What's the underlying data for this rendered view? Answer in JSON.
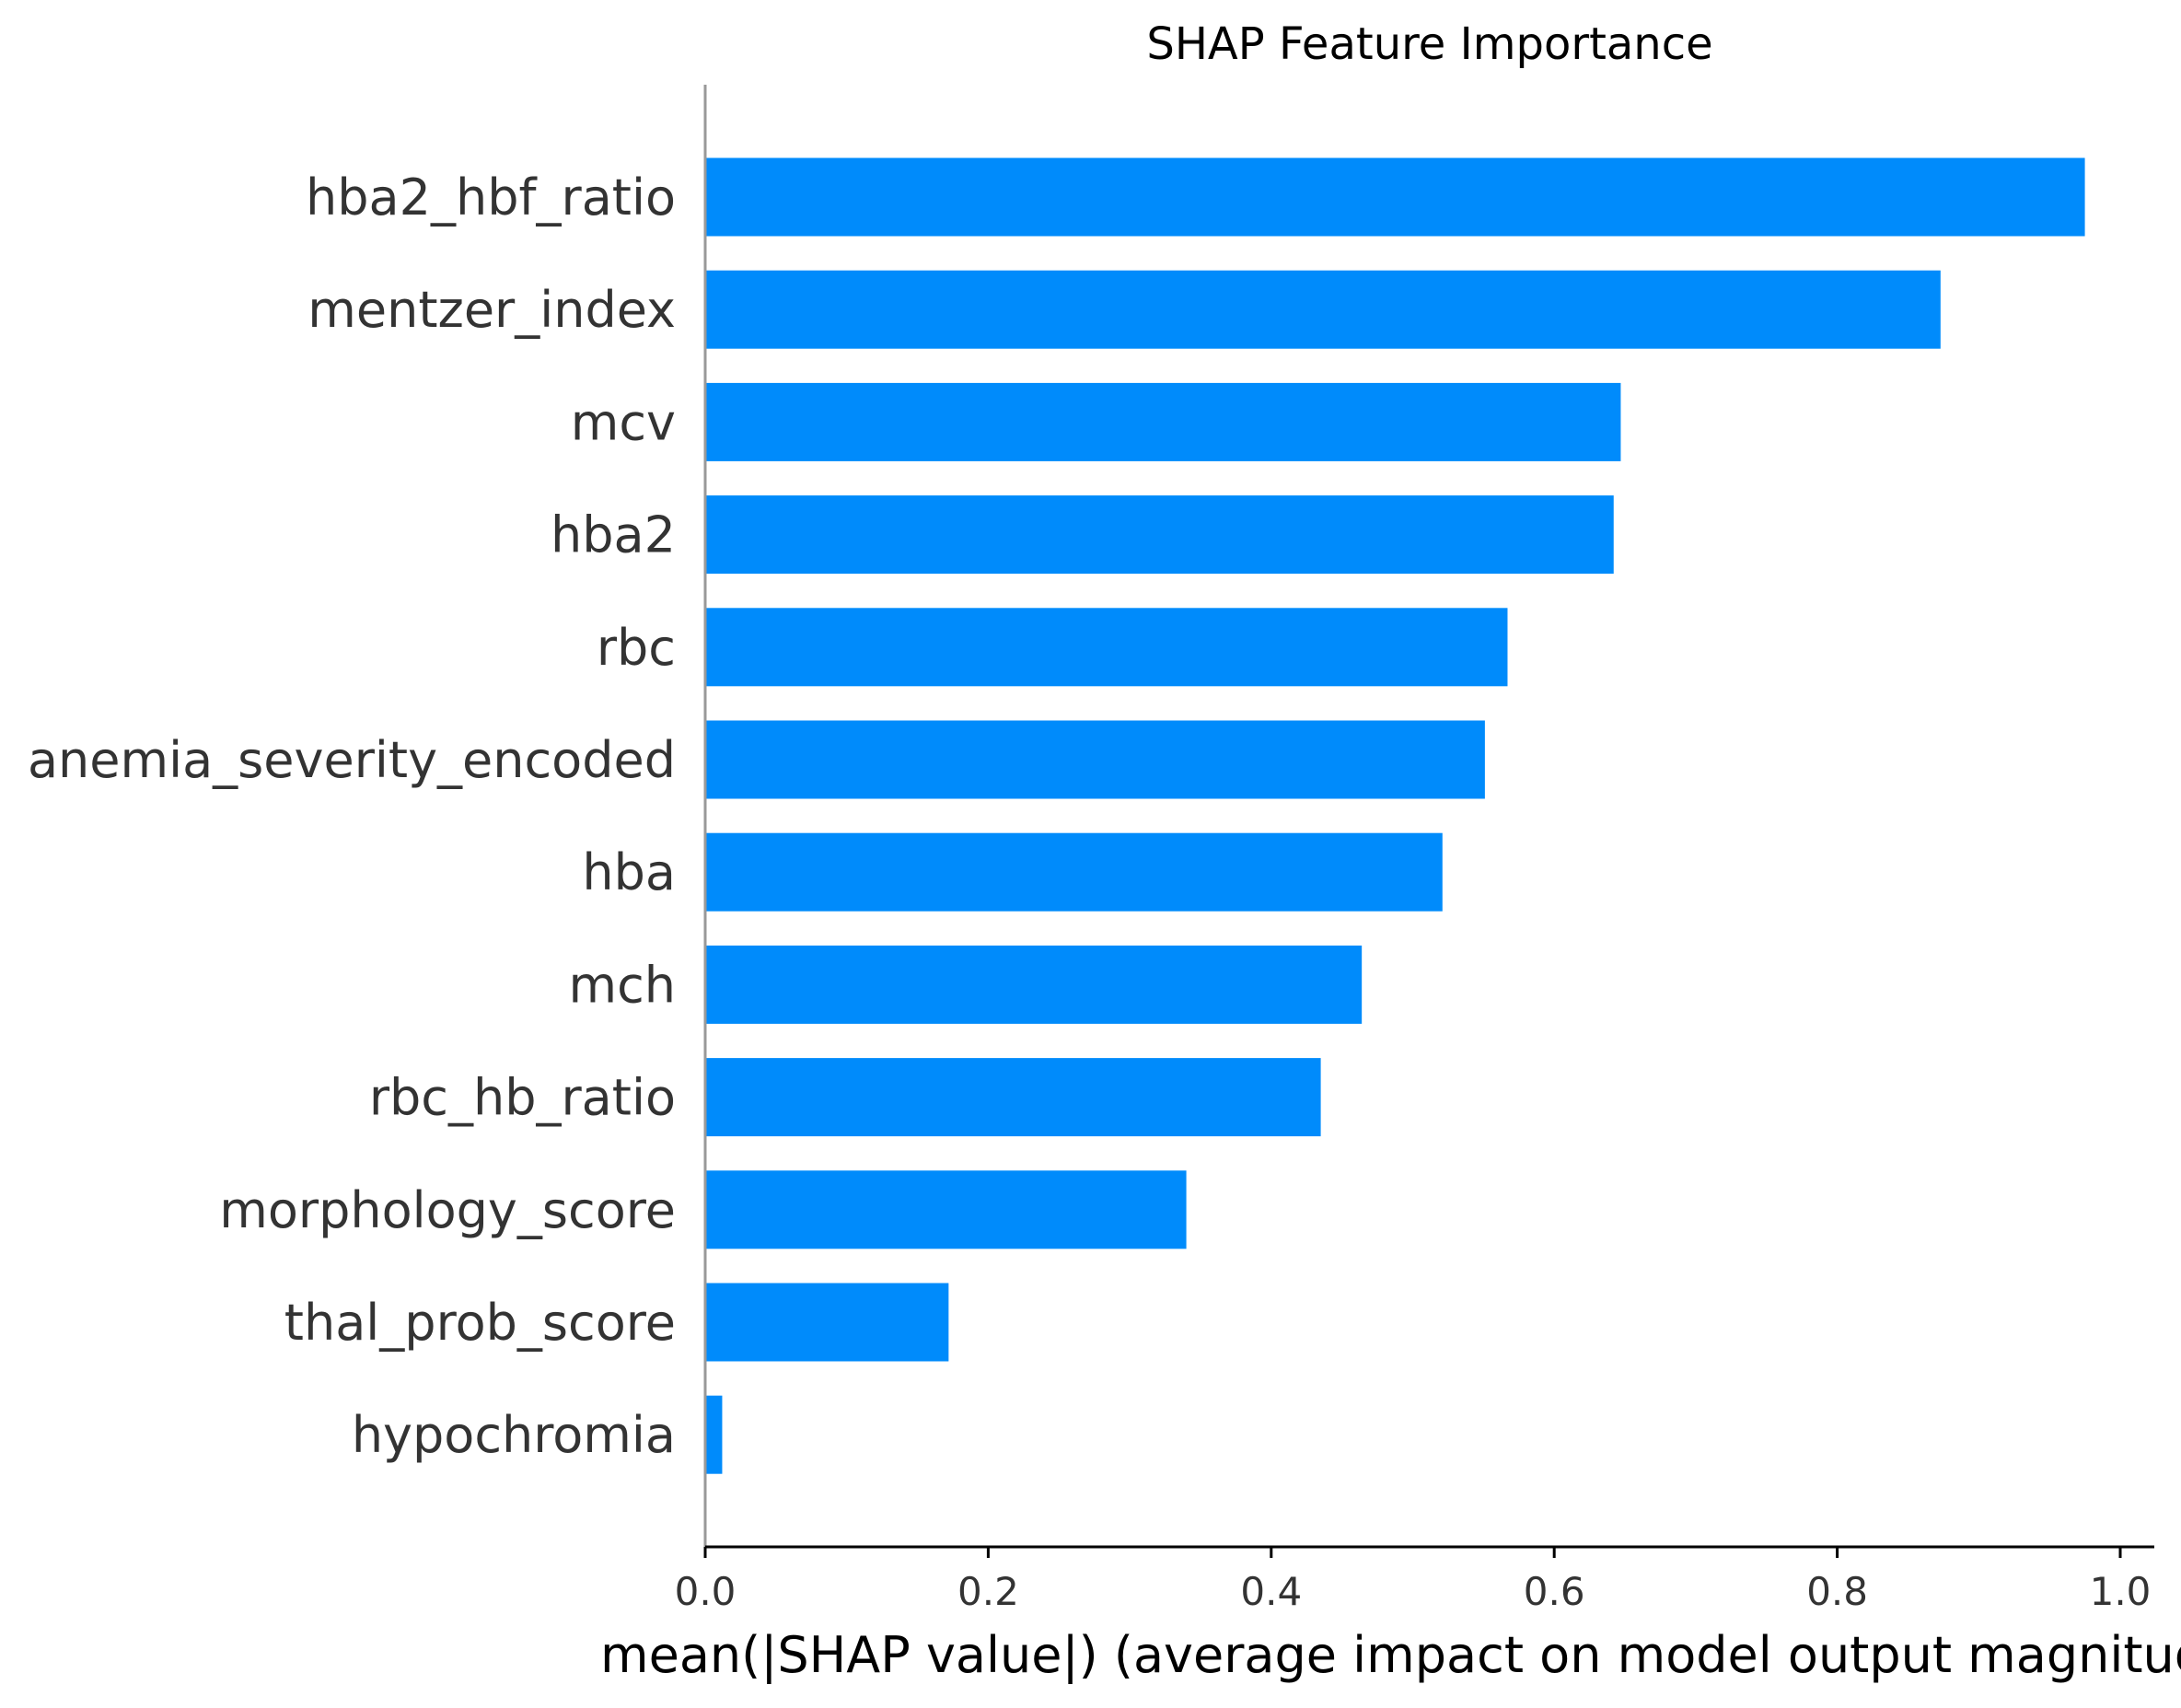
{
  "chart_data": {
    "type": "bar",
    "orientation": "horizontal",
    "title": "SHAP Feature Importance",
    "xlabel": "mean(|SHAP value|) (average impact on model output magnitude)",
    "ylabel": "",
    "xlim": [
      0,
      1.0
    ],
    "xticks": [
      "0.0",
      "0.2",
      "0.4",
      "0.6",
      "0.8",
      "1.0"
    ],
    "categories": [
      "hba2_hbf_ratio",
      "mentzer_index",
      "mcv",
      "hba2",
      "rbc",
      "anemia_severity_encoded",
      "hba",
      "mch",
      "rbc_hb_ratio",
      "morphology_score",
      "thal_prob_score",
      "hypochromia"
    ],
    "values": [
      0.975,
      0.873,
      0.647,
      0.642,
      0.567,
      0.551,
      0.521,
      0.464,
      0.435,
      0.34,
      0.172,
      0.012
    ],
    "bar_color": "#008bfb",
    "grid": false,
    "legend": "none"
  }
}
